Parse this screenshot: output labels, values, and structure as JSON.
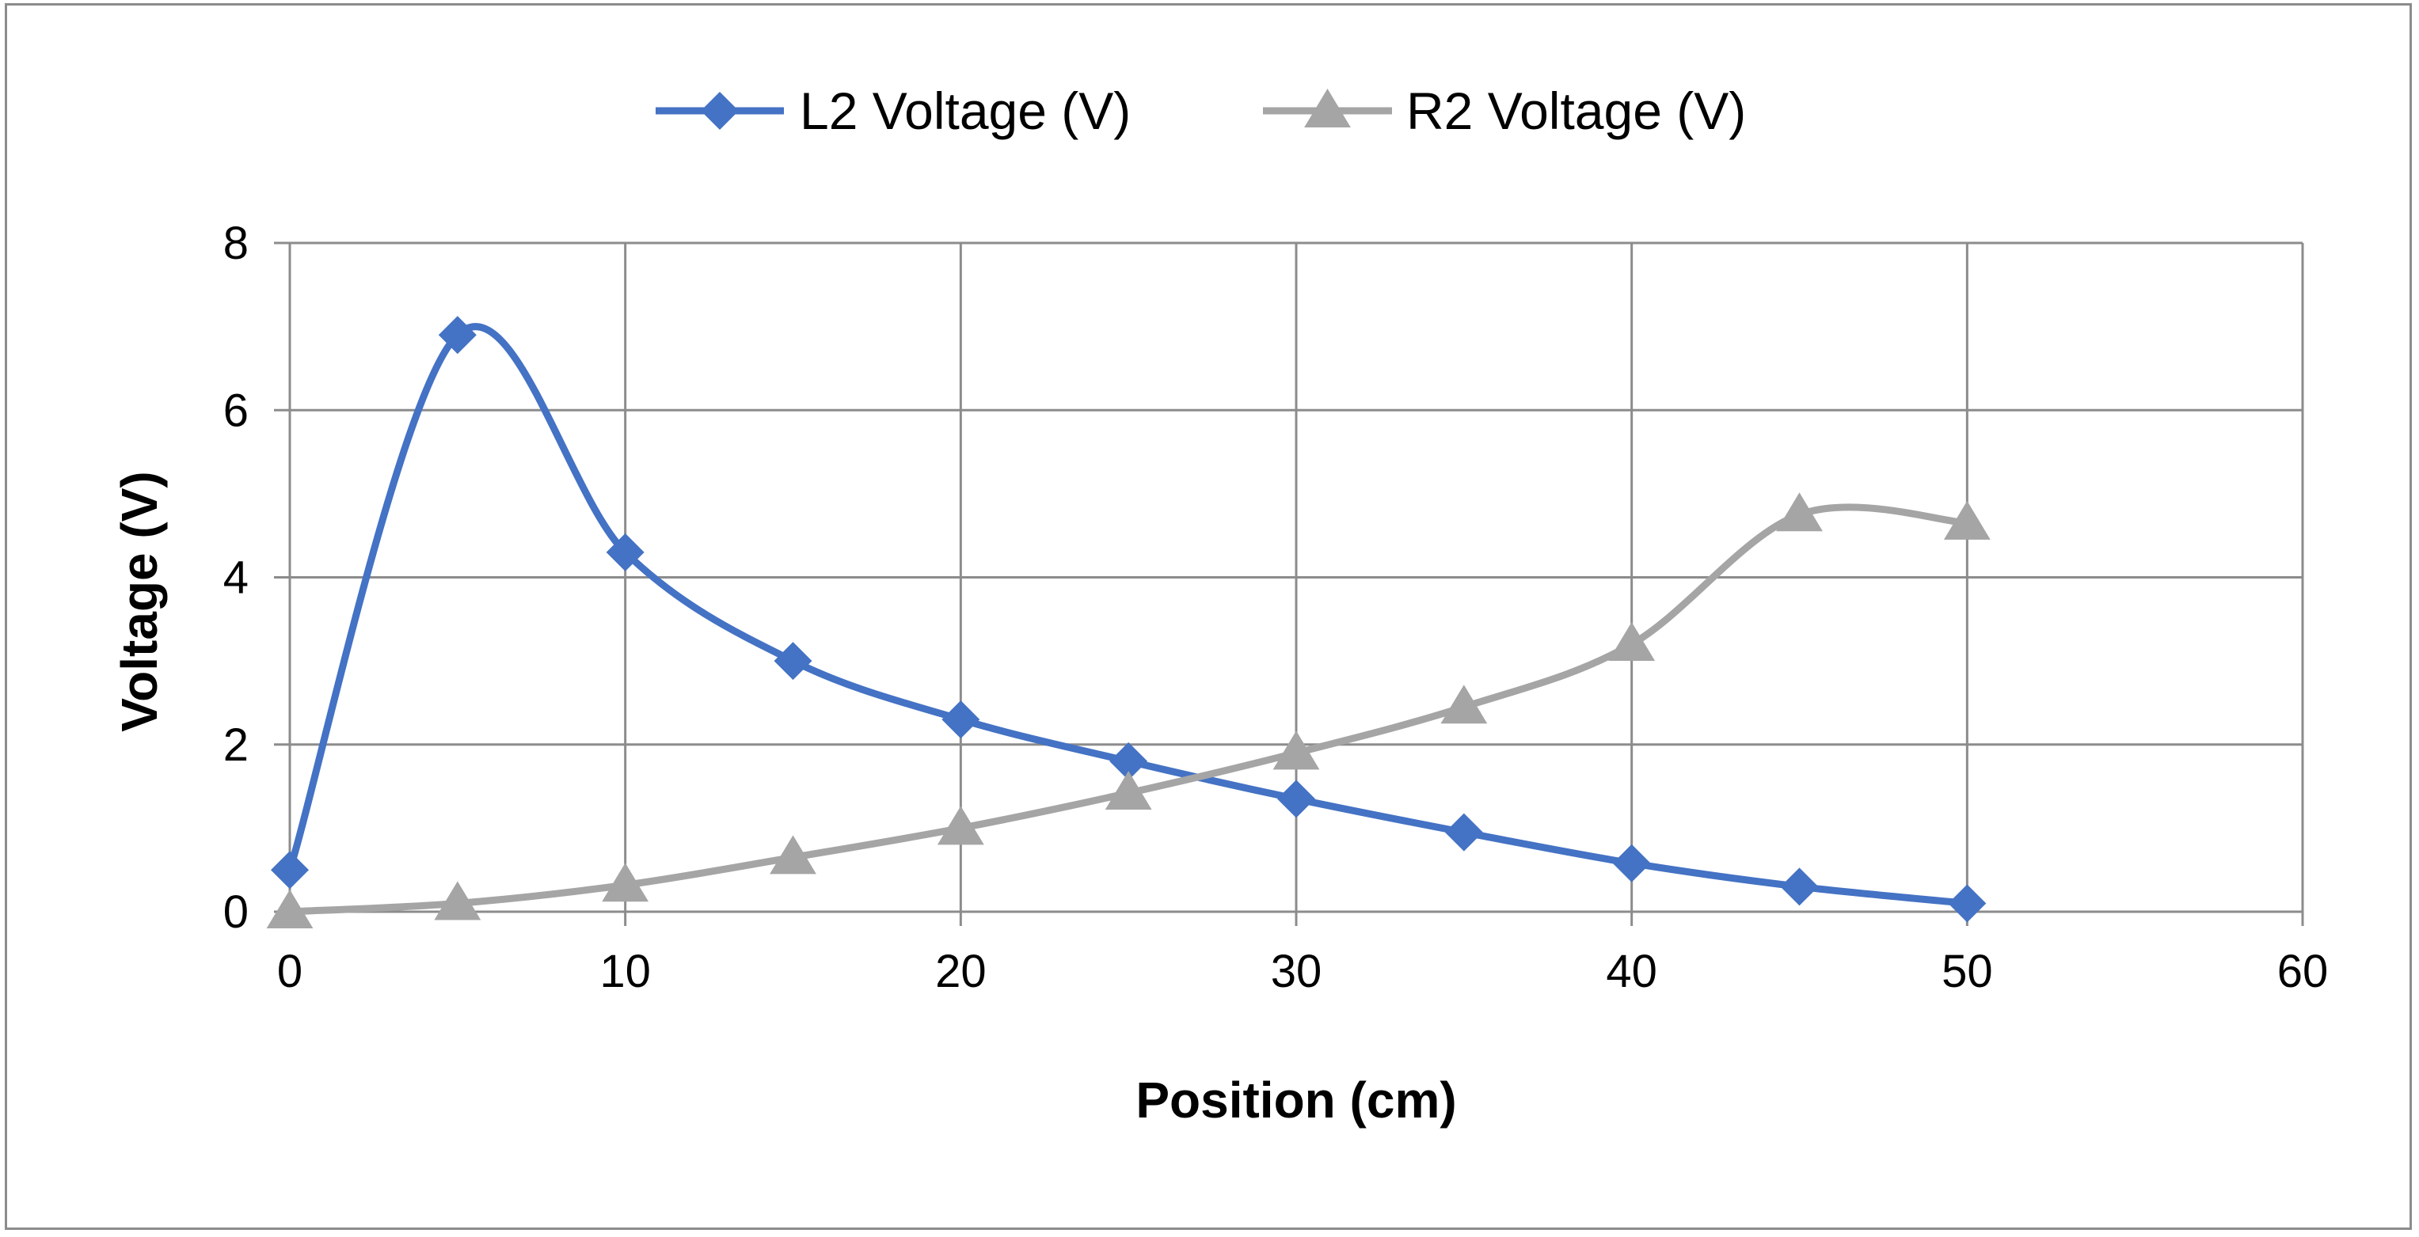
{
  "chart_data": {
    "type": "line",
    "title": "",
    "xlabel": "Position (cm)",
    "ylabel": "Voltage (V)",
    "xlim": [
      0,
      60
    ],
    "ylim": [
      0,
      8
    ],
    "xticks": [
      0,
      10,
      20,
      30,
      40,
      50,
      60
    ],
    "yticks": [
      0,
      2,
      4,
      6,
      8
    ],
    "grid": true,
    "legend_position": "top",
    "x": [
      0,
      5,
      10,
      15,
      20,
      25,
      30,
      35,
      40,
      45,
      50
    ],
    "series": [
      {
        "name": "L2 Voltage (V)",
        "color": "#4472c4",
        "marker": "diamond",
        "smooth": true,
        "values": [
          0.5,
          6.9,
          4.3,
          3.0,
          2.3,
          1.8,
          1.35,
          0.95,
          0.58,
          0.3,
          0.1
        ]
      },
      {
        "name": "R2 Voltage (V)",
        "color": "#a5a5a5",
        "marker": "triangle",
        "smooth": true,
        "values": [
          0.0,
          0.1,
          0.32,
          0.65,
          1.0,
          1.42,
          1.9,
          2.45,
          3.2,
          4.75,
          4.65
        ]
      }
    ]
  }
}
